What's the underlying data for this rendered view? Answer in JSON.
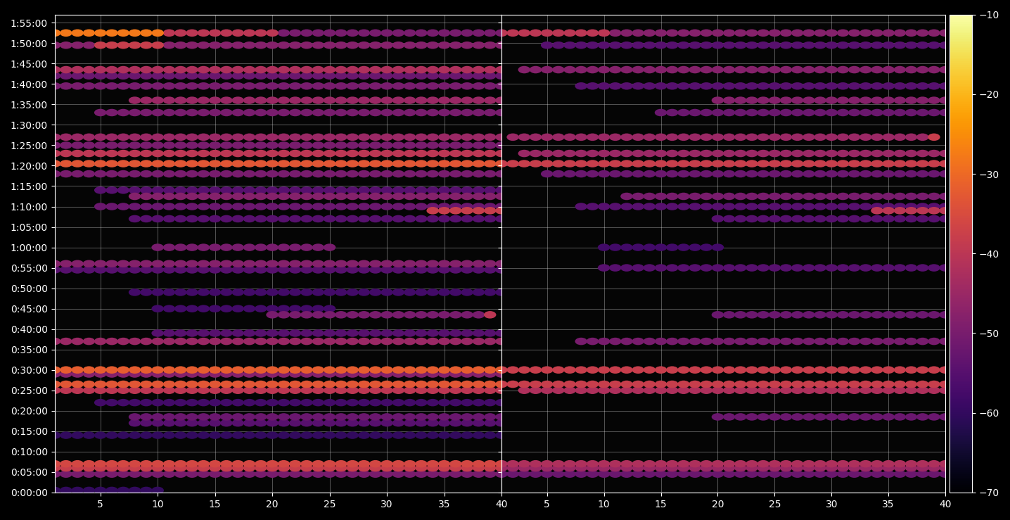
{
  "chart_data": {
    "type": "heatmap_scatter",
    "color": "inferno",
    "grid": true,
    "xlim": [
      1,
      40
    ],
    "xticks": [
      5,
      10,
      15,
      20,
      25,
      30,
      35,
      40
    ],
    "ylim": [
      0,
      7020
    ],
    "yticks": [
      {
        "value": 0,
        "label": "0:00:00"
      },
      {
        "value": 300,
        "label": "0:05:00"
      },
      {
        "value": 600,
        "label": "0:10:00"
      },
      {
        "value": 900,
        "label": "0:15:00"
      },
      {
        "value": 1200,
        "label": "0:20:00"
      },
      {
        "value": 1500,
        "label": "0:25:00"
      },
      {
        "value": 1800,
        "label": "0:30:00"
      },
      {
        "value": 2100,
        "label": "0:35:00"
      },
      {
        "value": 2400,
        "label": "0:40:00"
      },
      {
        "value": 2700,
        "label": "0:45:00"
      },
      {
        "value": 3000,
        "label": "0:50:00"
      },
      {
        "value": 3300,
        "label": "0:55:00"
      },
      {
        "value": 3600,
        "label": "1:00:00"
      },
      {
        "value": 3900,
        "label": "1:05:00"
      },
      {
        "value": 4200,
        "label": "1:10:00"
      },
      {
        "value": 4500,
        "label": "1:15:00"
      },
      {
        "value": 4800,
        "label": "1:20:00"
      },
      {
        "value": 5100,
        "label": "1:25:00"
      },
      {
        "value": 5400,
        "label": "1:30:00"
      },
      {
        "value": 5700,
        "label": "1:35:00"
      },
      {
        "value": 6000,
        "label": "1:40:00"
      },
      {
        "value": 6300,
        "label": "1:45:00"
      },
      {
        "value": 6600,
        "label": "1:50:00"
      },
      {
        "value": 6900,
        "label": "1:55:00"
      }
    ],
    "colorbar": {
      "range": [
        -70,
        -10
      ],
      "ticks": [
        {
          "value": -70,
          "label": "−70"
        },
        {
          "value": -60,
          "label": "−60"
        },
        {
          "value": -50,
          "label": "−50"
        },
        {
          "value": -40,
          "label": "−40"
        },
        {
          "value": -30,
          "label": "−30"
        },
        {
          "value": -20,
          "label": "−20"
        },
        {
          "value": -10,
          "label": "−10"
        }
      ]
    },
    "panels": [
      {
        "bands": [
          [
            6750,
            1,
            10,
            -28
          ],
          [
            6750,
            11,
            20,
            -40
          ],
          [
            6750,
            21,
            40,
            -50
          ],
          [
            6570,
            1,
            4,
            -48
          ],
          [
            6570,
            5,
            10,
            -38
          ],
          [
            6570,
            11,
            40,
            -48
          ],
          [
            6210,
            1,
            40,
            -42
          ],
          [
            6120,
            1,
            40,
            -52
          ],
          [
            5970,
            1,
            40,
            -50
          ],
          [
            5760,
            8,
            40,
            -45
          ],
          [
            5580,
            5,
            40,
            -50
          ],
          [
            5220,
            1,
            40,
            -45
          ],
          [
            5100,
            1,
            40,
            -50
          ],
          [
            4980,
            1,
            40,
            -40
          ],
          [
            4830,
            1,
            40,
            -33
          ],
          [
            4680,
            1,
            40,
            -50
          ],
          [
            4440,
            5,
            40,
            -55
          ],
          [
            4350,
            8,
            40,
            -48
          ],
          [
            4200,
            5,
            40,
            -52
          ],
          [
            4140,
            34,
            40,
            -38
          ],
          [
            4020,
            8,
            40,
            -55
          ],
          [
            3600,
            10,
            25,
            -50
          ],
          [
            3360,
            1,
            40,
            -48
          ],
          [
            3270,
            1,
            40,
            -55
          ],
          [
            2940,
            8,
            40,
            -58
          ],
          [
            2700,
            10,
            25,
            -58
          ],
          [
            2610,
            20,
            38,
            -50
          ],
          [
            2610,
            39,
            39,
            -40
          ],
          [
            2340,
            10,
            40,
            -55
          ],
          [
            2220,
            1,
            40,
            -45
          ],
          [
            1800,
            1,
            40,
            -32
          ],
          [
            1740,
            1,
            40,
            -48
          ],
          [
            1590,
            1,
            40,
            -33
          ],
          [
            1500,
            1,
            40,
            -40
          ],
          [
            1320,
            5,
            40,
            -58
          ],
          [
            1110,
            8,
            40,
            -52
          ],
          [
            1020,
            8,
            40,
            -55
          ],
          [
            840,
            1,
            40,
            -60
          ],
          [
            420,
            1,
            40,
            -36
          ],
          [
            360,
            1,
            40,
            -38
          ],
          [
            270,
            1,
            40,
            -50
          ],
          [
            30,
            1,
            10,
            -60
          ]
        ]
      },
      {
        "bands": [
          [
            6750,
            1,
            10,
            -40
          ],
          [
            6750,
            11,
            40,
            -48
          ],
          [
            6570,
            5,
            40,
            -55
          ],
          [
            6210,
            3,
            40,
            -48
          ],
          [
            5970,
            8,
            40,
            -55
          ],
          [
            5760,
            20,
            40,
            -48
          ],
          [
            5580,
            15,
            40,
            -52
          ],
          [
            5220,
            2,
            38,
            -45
          ],
          [
            5220,
            39,
            39,
            -38
          ],
          [
            4980,
            3,
            40,
            -45
          ],
          [
            4830,
            1,
            40,
            -38
          ],
          [
            4680,
            5,
            40,
            -52
          ],
          [
            4350,
            12,
            40,
            -50
          ],
          [
            4200,
            8,
            40,
            -55
          ],
          [
            4140,
            34,
            40,
            -40
          ],
          [
            4020,
            20,
            40,
            -55
          ],
          [
            3600,
            10,
            20,
            -58
          ],
          [
            3300,
            10,
            40,
            -55
          ],
          [
            2610,
            20,
            40,
            -52
          ],
          [
            2220,
            8,
            40,
            -50
          ],
          [
            1800,
            1,
            40,
            -38
          ],
          [
            1590,
            1,
            40,
            -38
          ],
          [
            1500,
            3,
            40,
            -42
          ],
          [
            1110,
            20,
            40,
            -52
          ],
          [
            420,
            1,
            40,
            -42
          ],
          [
            360,
            1,
            40,
            -45
          ],
          [
            270,
            1,
            40,
            -52
          ]
        ]
      }
    ]
  }
}
